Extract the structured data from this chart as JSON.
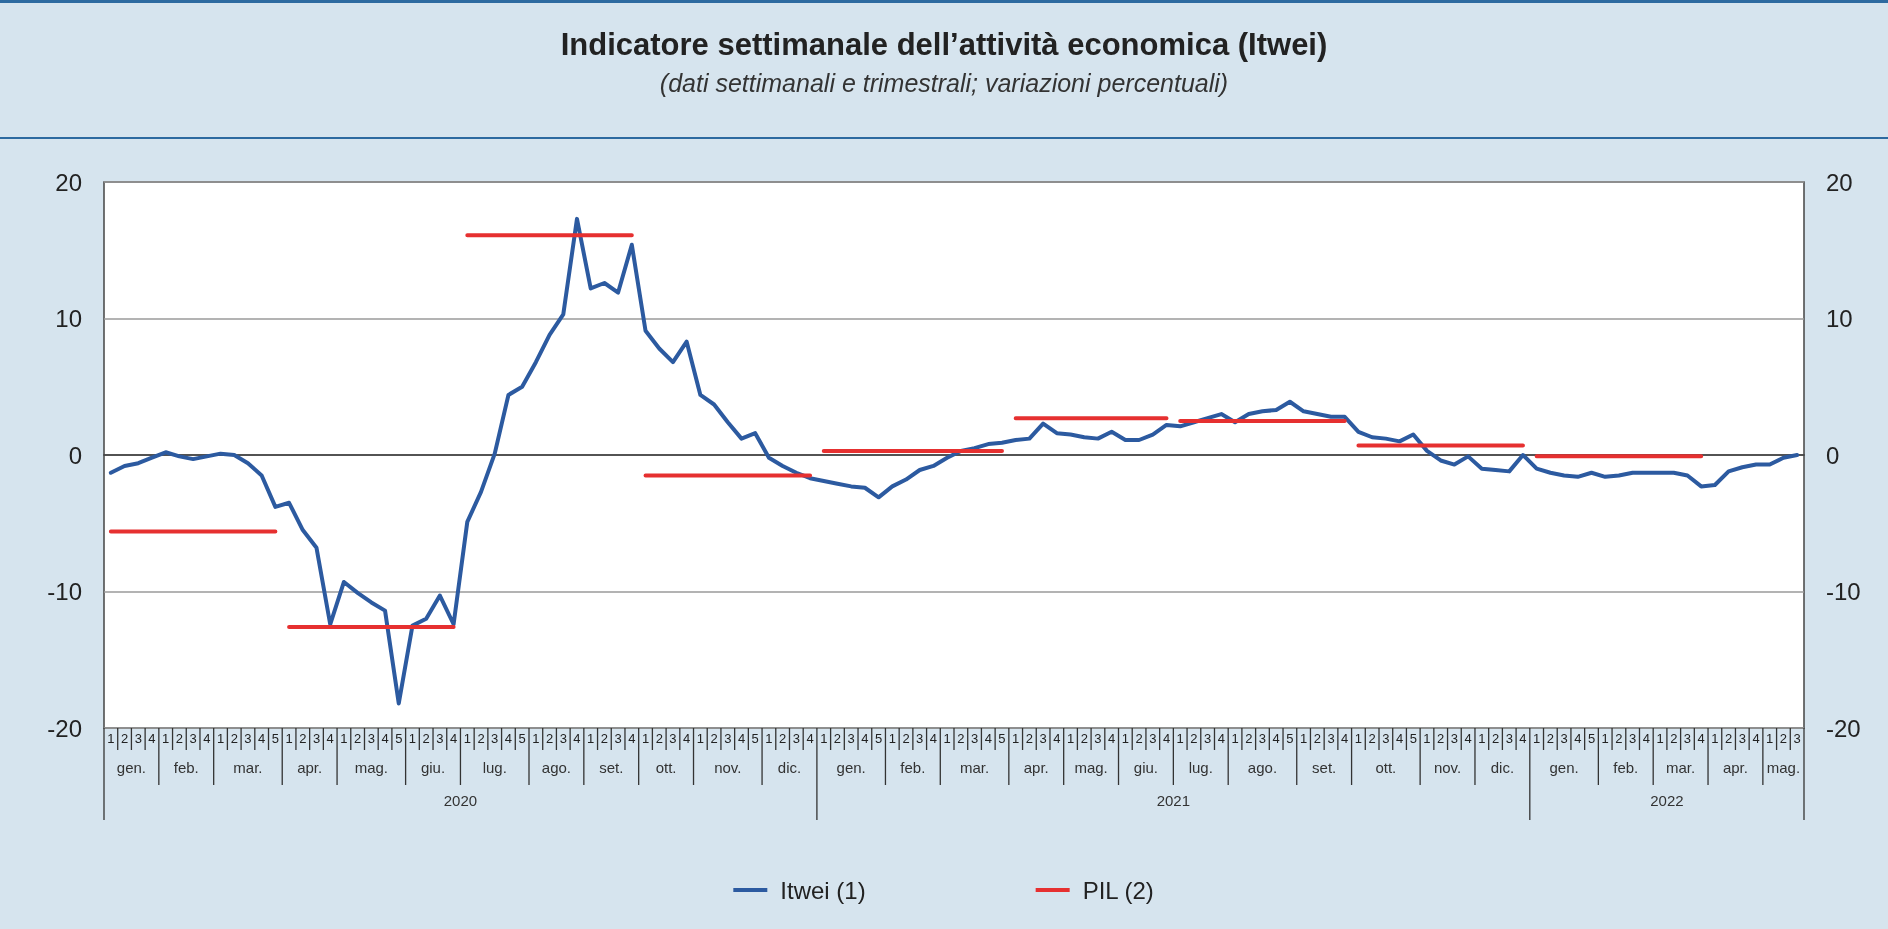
{
  "chart_data": {
    "type": "line",
    "title": "Indicatore settimanale dell’attività economica (Itwei)",
    "subtitle": "(dati settimanali e trimestrali; variazioni percentuali)",
    "categories": [
      "1",
      "2",
      "3",
      "4",
      "1",
      "2",
      "3",
      "4",
      "1",
      "2",
      "3",
      "4",
      "5",
      "1",
      "2",
      "3",
      "4",
      "1",
      "2",
      "3",
      "4",
      "5",
      "1",
      "2",
      "3",
      "4",
      "1",
      "2",
      "3",
      "4",
      "5",
      "1",
      "2",
      "3",
      "4",
      "1",
      "2",
      "3",
      "4",
      "1",
      "2",
      "3",
      "4",
      "1",
      "2",
      "3",
      "4",
      "5",
      "1",
      "2",
      "3",
      "4",
      "1",
      "2",
      "3",
      "4",
      "5",
      "1",
      "2",
      "3",
      "4",
      "1",
      "2",
      "3",
      "4",
      "5",
      "1",
      "2",
      "3",
      "4",
      "1",
      "2",
      "3",
      "4",
      "1",
      "2",
      "3",
      "4",
      "1",
      "2",
      "3",
      "4",
      "1",
      "2",
      "3",
      "4",
      "5",
      "1",
      "2",
      "3",
      "4",
      "1",
      "2",
      "3",
      "4",
      "5",
      "1",
      "2",
      "3",
      "4",
      "1",
      "2",
      "3",
      "4",
      "1",
      "2",
      "3",
      "4",
      "5",
      "1",
      "2",
      "3",
      "4",
      "1",
      "2",
      "3",
      "4",
      "1",
      "2",
      "3",
      "4",
      "1",
      "2",
      "3"
    ],
    "series": [
      {
        "name": "Itwei (1)",
        "color": "#2c5aa0",
        "values": [
          -1.3,
          -0.8,
          -0.6,
          -0.2,
          0.2,
          -0.1,
          -0.3,
          -0.1,
          0.1,
          0,
          -0.6,
          -1.5,
          -3.8,
          -3.5,
          -5.5,
          -6.8,
          -12.4,
          -9.3,
          -10.1,
          -10.8,
          -11.4,
          -18.2,
          -12.5,
          -12,
          -10.3,
          -12.4,
          -4.9,
          -2.7,
          0.1,
          4.4,
          5,
          6.8,
          8.8,
          10.3,
          17.3,
          12.2,
          12.6,
          11.9,
          15.4,
          9.1,
          7.8,
          6.8,
          8.3,
          4.4,
          3.7,
          2.4,
          1.2,
          1.6,
          -0.2,
          -0.8,
          -1.3,
          -1.7,
          -1.9,
          -2.1,
          -2.3,
          -2.4,
          -3.1,
          -2.3,
          -1.8,
          -1.1,
          -0.8,
          -0.2,
          0.3,
          0.5,
          0.8,
          0.9,
          1.1,
          1.2,
          2.3,
          1.6,
          1.5,
          1.3,
          1.2,
          1.7,
          1.1,
          1.1,
          1.5,
          2.2,
          2.1,
          2.4,
          2.7,
          3,
          2.4,
          3,
          3.2,
          3.3,
          3.9,
          3.2,
          3,
          2.8,
          2.8,
          1.7,
          1.3,
          1.2,
          1,
          1.5,
          0.3,
          -0.4,
          -0.7,
          -0.1,
          -1,
          -1.1,
          -1.2,
          0,
          -1,
          -1.3,
          -1.5,
          -1.6,
          -1.3,
          -1.6,
          -1.5,
          -1.3,
          -1.3,
          -1.3,
          -1.3,
          -1.5,
          -2.3,
          -2.2,
          -1.2,
          -0.9,
          -0.7,
          -0.7,
          -0.2,
          0
        ]
      },
      {
        "name": "PIL (2)",
        "color": "#e63030",
        "values": [
          -5.6,
          -5.6,
          -5.6,
          -5.6,
          -5.6,
          -5.6,
          -5.6,
          -5.6,
          -5.6,
          -5.6,
          -5.6,
          -5.6,
          -5.6,
          -12.6,
          -12.6,
          -12.6,
          -12.6,
          -12.6,
          -12.6,
          -12.6,
          -12.6,
          -12.6,
          -12.6,
          -12.6,
          -12.6,
          -12.6,
          16.1,
          16.1,
          16.1,
          16.1,
          16.1,
          16.1,
          16.1,
          16.1,
          16.1,
          16.1,
          16.1,
          16.1,
          16.1,
          -1.5,
          -1.5,
          -1.5,
          -1.5,
          -1.5,
          -1.5,
          -1.5,
          -1.5,
          -1.5,
          -1.5,
          -1.5,
          -1.5,
          -1.5,
          0.3,
          0.3,
          0.3,
          0.3,
          0.3,
          0.3,
          0.3,
          0.3,
          0.3,
          0.3,
          0.3,
          0.3,
          0.3,
          0.3,
          2.7,
          2.7,
          2.7,
          2.7,
          2.7,
          2.7,
          2.7,
          2.7,
          2.7,
          2.7,
          2.7,
          2.7,
          2.5,
          2.5,
          2.5,
          2.5,
          2.5,
          2.5,
          2.5,
          2.5,
          2.5,
          2.5,
          2.5,
          2.5,
          2.5,
          0.7,
          0.7,
          0.7,
          0.7,
          0.7,
          0.7,
          0.7,
          0.7,
          0.7,
          0.7,
          0.7,
          0.7,
          0.7,
          -0.1,
          -0.1,
          -0.1,
          -0.1,
          -0.1,
          -0.1,
          -0.1,
          -0.1,
          -0.1,
          -0.1,
          -0.1,
          -0.1,
          -0.1,
          null,
          null,
          null,
          null,
          null,
          null,
          null
        ]
      }
    ],
    "ylim": [
      -20,
      20
    ],
    "yticks": [
      -20,
      -10,
      0,
      10,
      20
    ],
    "y2lim": [
      -20,
      20
    ],
    "y2ticks": [
      -20,
      -10,
      0,
      10,
      20
    ],
    "grid": "y",
    "legend": "bottom",
    "marker": "none",
    "line_style": "solid",
    "annotations": [
      "gen.",
      "feb.",
      "mar.",
      "apr.",
      "mag.",
      "giu.",
      "lug.",
      "ago.",
      "set.",
      "ott.",
      "nov.",
      "dic.",
      "gen.",
      "feb.",
      "mar.",
      "apr.",
      "mag.",
      "giu.",
      "lug.",
      "ago.",
      "set.",
      "ott.",
      "nov.",
      "dic.",
      "gen.",
      "feb.",
      "mar.",
      "apr.",
      "mag.",
      "2020",
      "2021",
      "2022"
    ]
  }
}
